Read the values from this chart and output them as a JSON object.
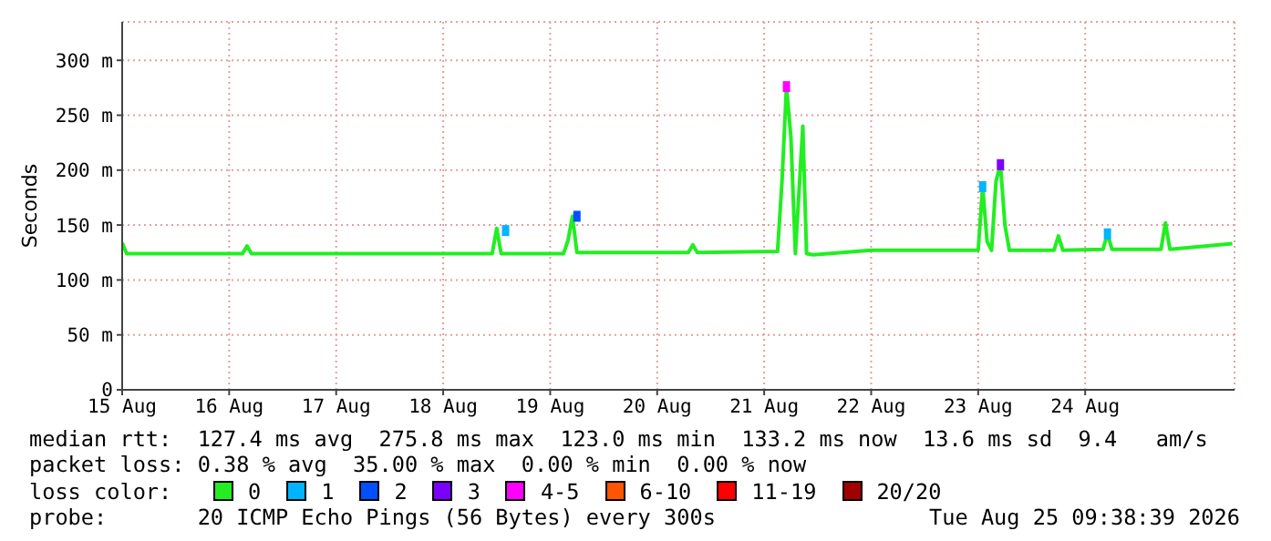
{
  "chart_data": {
    "type": "line",
    "ylabel": "Seconds",
    "xlim": [
      "2026-08-15T00:00",
      "2026-08-25T09:30"
    ],
    "xticks": [
      {
        "value": "2026-08-15",
        "label": "15 Aug"
      },
      {
        "value": "2026-08-16",
        "label": "16 Aug"
      },
      {
        "value": "2026-08-17",
        "label": "17 Aug"
      },
      {
        "value": "2026-08-18",
        "label": "18 Aug"
      },
      {
        "value": "2026-08-19",
        "label": "19 Aug"
      },
      {
        "value": "2026-08-20",
        "label": "20 Aug"
      },
      {
        "value": "2026-08-21",
        "label": "21 Aug"
      },
      {
        "value": "2026-08-22",
        "label": "22 Aug"
      },
      {
        "value": "2026-08-23",
        "label": "23 Aug"
      },
      {
        "value": "2026-08-24",
        "label": "24 Aug"
      }
    ],
    "ylim": [
      0,
      335
    ],
    "yticks": [
      0,
      {
        "value": 50,
        "label": "50 m"
      },
      {
        "value": 100,
        "label": "100 m"
      },
      {
        "value": 150,
        "label": "150 m"
      },
      {
        "value": 200,
        "label": "200 m"
      },
      {
        "value": 250,
        "label": "250 m"
      },
      {
        "value": 300,
        "label": "300 m"
      }
    ],
    "grid": true,
    "legend": "bottom",
    "legend_title": "loss color:",
    "series": [
      {
        "name": "0",
        "marker": "none",
        "color": "#22ee22",
        "x": [
          "2026-08-15T00:00",
          "2026-08-15T01:00",
          "2026-08-16T03:00",
          "2026-08-16T04:00",
          "2026-08-16T05:00",
          "2026-08-18T11:00",
          "2026-08-18T12:00",
          "2026-08-18T13:00",
          "2026-08-19T03:00",
          "2026-08-19T04:00",
          "2026-08-19T05:00",
          "2026-08-19T06:00",
          "2026-08-20T07:00",
          "2026-08-20T08:00",
          "2026-08-20T09:00",
          "2026-08-21T03:00",
          "2026-08-21T04:00",
          "2026-08-21T05:00",
          "2026-08-21T06:00",
          "2026-08-21T07:00",
          "2026-08-21T08:40",
          "2026-08-21T09:30",
          "2026-08-21T11:00",
          "2026-08-22T00:00",
          "2026-08-23T00:00",
          "2026-08-23T01:00",
          "2026-08-23T02:00",
          "2026-08-23T03:00",
          "2026-08-23T04:00",
          "2026-08-23T05:00",
          "2026-08-23T06:00",
          "2026-08-23T07:00",
          "2026-08-23T17:00",
          "2026-08-23T18:00",
          "2026-08-23T19:00",
          "2026-08-24T04:00",
          "2026-08-24T05:00",
          "2026-08-24T06:00",
          "2026-08-24T17:00",
          "2026-08-24T18:00",
          "2026-08-24T19:00",
          "2026-08-25T09:00"
        ],
        "values": [
          134,
          124,
          124,
          131,
          124,
          124,
          147,
          124,
          124,
          136,
          158,
          125,
          125,
          132,
          125,
          126,
          190,
          276,
          230,
          124,
          240,
          124,
          123,
          127,
          127,
          185,
          135,
          127,
          190,
          205,
          150,
          127,
          127,
          140,
          127,
          128,
          142,
          128,
          128,
          152,
          128,
          133
        ]
      },
      {
        "name": "1",
        "type": "scatter",
        "marker": "square",
        "color": "#00b4ff",
        "x": [
          "2026-08-18T14:00",
          "2026-08-23T01:00",
          "2026-08-24T05:00"
        ],
        "values": [
          145,
          185,
          142
        ]
      },
      {
        "name": "2",
        "type": "scatter",
        "marker": "square",
        "color": "#0050ff",
        "x": [
          "2026-08-19T06:00"
        ],
        "values": [
          158
        ]
      },
      {
        "name": "3",
        "type": "scatter",
        "marker": "square",
        "color": "#7a00ff",
        "x": [
          "2026-08-23T05:00"
        ],
        "values": [
          205
        ]
      },
      {
        "name": "4-5",
        "type": "scatter",
        "marker": "square",
        "color": "#ff00ff",
        "x": [
          "2026-08-21T05:00"
        ],
        "values": [
          276
        ]
      },
      {
        "name": "6-10",
        "type": "scatter",
        "marker": "square",
        "color": "#ff5500"
      },
      {
        "name": "11-19",
        "type": "scatter",
        "marker": "square",
        "color": "#ff0000"
      },
      {
        "name": "20/20",
        "type": "scatter",
        "marker": "square",
        "color": "#a00000"
      }
    ],
    "annotations": [
      "median rtt:  127.4 ms avg  275.8 ms max  123.0 ms min  133.2 ms now  13.6 ms sd  9.4   am/s",
      "packet loss: 0.38 % avg  35.00 % max  0.00 % min  0.00 % now",
      "probe:       20 ICMP Echo Pings (56 Bytes) every 300s",
      "Tue Aug 25 09:38:39 2026"
    ]
  }
}
